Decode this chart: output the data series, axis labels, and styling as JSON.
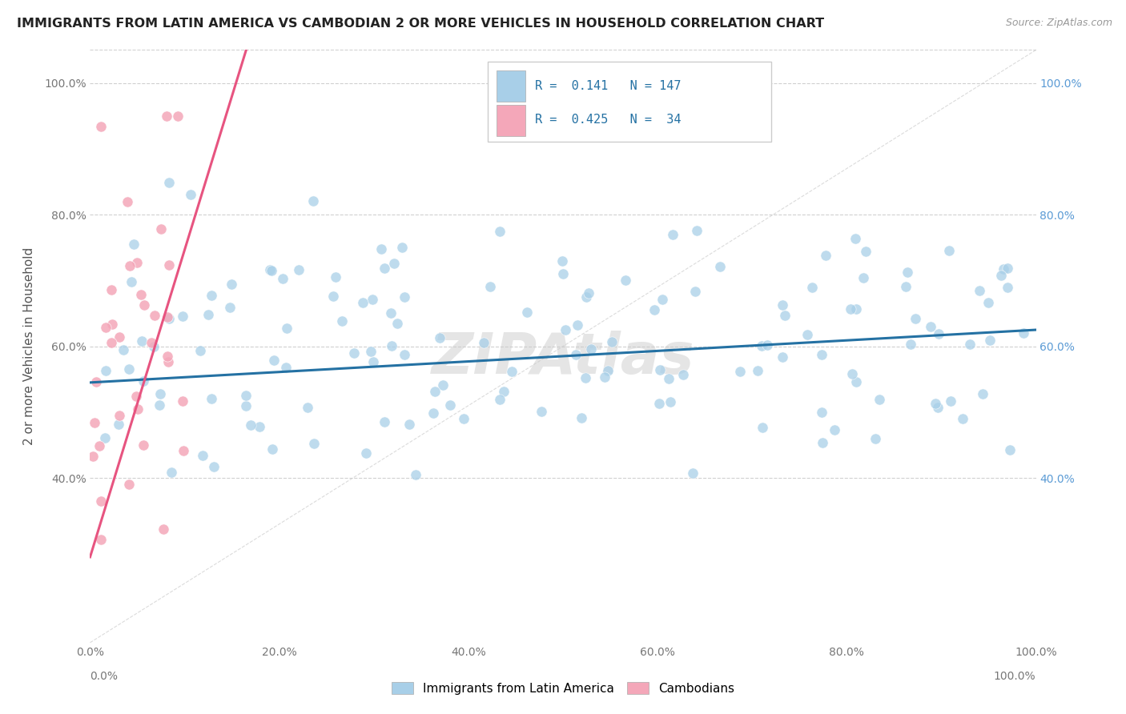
{
  "title": "IMMIGRANTS FROM LATIN AMERICA VS CAMBODIAN 2 OR MORE VEHICLES IN HOUSEHOLD CORRELATION CHART",
  "source": "Source: ZipAtlas.com",
  "ylabel": "2 or more Vehicles in Household",
  "xlim": [
    0.0,
    1.0
  ],
  "ylim": [
    0.15,
    1.05
  ],
  "xticks": [
    0.0,
    0.2,
    0.4,
    0.6,
    0.8,
    1.0
  ],
  "xtick_labels": [
    "0.0%",
    "20.0%",
    "40.0%",
    "60.0%",
    "80.0%",
    "100.0%"
  ],
  "yticks_left": [
    0.4,
    0.6,
    0.8,
    1.0
  ],
  "ytick_labels_left": [
    "40.0%",
    "60.0%",
    "80.0%",
    "100.0%"
  ],
  "yticks_right": [
    0.4,
    0.6,
    0.8,
    1.0
  ],
  "ytick_labels_right": [
    "40.0%",
    "60.0%",
    "80.0%",
    "100.0%"
  ],
  "blue_R": 0.141,
  "blue_N": 147,
  "pink_R": 0.425,
  "pink_N": 34,
  "blue_color": "#a8cfe8",
  "pink_color": "#f4a7b9",
  "blue_line_color": "#2471a3",
  "pink_line_color": "#e75480",
  "grid_color": "#d0d0d0",
  "background_color": "#ffffff",
  "watermark": "ZIPAtlas",
  "legend_label_blue": "Immigrants from Latin America",
  "legend_label_pink": "Cambodians",
  "blue_line_x0": 0.0,
  "blue_line_y0": 0.545,
  "blue_line_x1": 1.0,
  "blue_line_y1": 0.625,
  "pink_line_x0": 0.0,
  "pink_line_y0": 0.28,
  "pink_line_x1": 0.165,
  "pink_line_y1": 1.05,
  "diag_line_color": "#cccccc"
}
